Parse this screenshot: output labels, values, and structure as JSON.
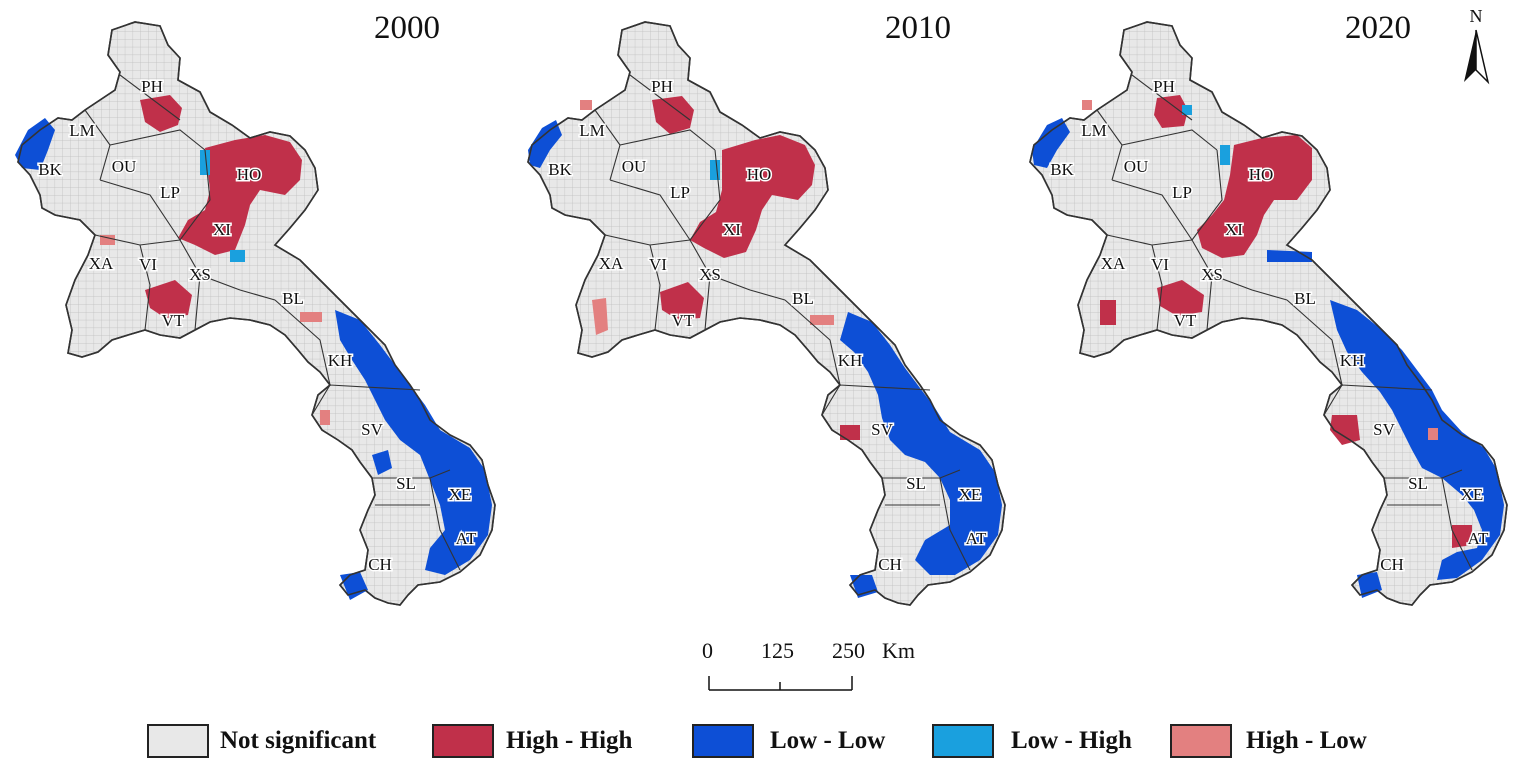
{
  "maps": [
    {
      "year": "2000",
      "provinces": [
        "PH",
        "LM",
        "BK",
        "OU",
        "HO",
        "LP",
        "XI",
        "XA",
        "VI",
        "XS",
        "BL",
        "VT",
        "KH",
        "SV",
        "SL",
        "XE",
        "AT",
        "CH"
      ]
    },
    {
      "year": "2010",
      "provinces": [
        "PH",
        "LM",
        "BK",
        "OU",
        "HO",
        "LP",
        "XI",
        "XA",
        "VI",
        "XS",
        "BL",
        "VT",
        "KH",
        "SV",
        "SL",
        "XE",
        "AT",
        "CH"
      ]
    },
    {
      "year": "2020",
      "provinces": [
        "PH",
        "LM",
        "BK",
        "OU",
        "HO",
        "LP",
        "XI",
        "XA",
        "VI",
        "XS",
        "BL",
        "VT",
        "KH",
        "SV",
        "SL",
        "XE",
        "AT",
        "CH"
      ]
    }
  ],
  "north_arrow": {
    "label": "N"
  },
  "scale_bar": {
    "ticks": [
      "0",
      "125",
      "250"
    ],
    "unit": "Km"
  },
  "legend": [
    {
      "label": "Not significant",
      "color": "#e8e8e8"
    },
    {
      "label": "High - High",
      "color": "#c0304a"
    },
    {
      "label": "Low - Low",
      "color": "#0d4fd6"
    },
    {
      "label": "Low - High",
      "color": "#1aa0de"
    },
    {
      "label": "High - Low",
      "color": "#e38080"
    }
  ],
  "colors": {
    "not_significant": "#e8e8e8",
    "high_high": "#c0304a",
    "low_low": "#0d4fd6",
    "low_high": "#1aa0de",
    "high_low": "#e38080",
    "grid": "#b9b9b9",
    "border": "#333333"
  }
}
